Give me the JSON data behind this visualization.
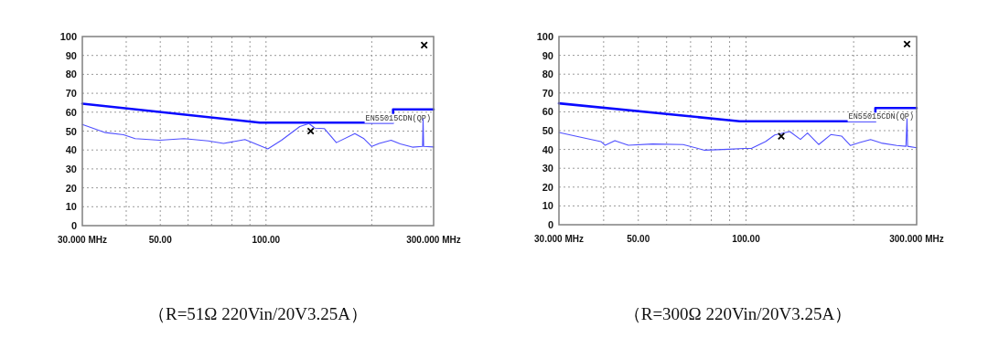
{
  "chart_data": [
    {
      "type": "line",
      "log": "x",
      "grid": true,
      "xlim": [
        30,
        300
      ],
      "ylim": [
        0,
        100
      ],
      "xticks": [
        {
          "value": 30,
          "label": "30.000 MHz"
        },
        {
          "value": 40,
          "label": null
        },
        {
          "value": 50,
          "label": "50.00"
        },
        {
          "value": 60,
          "label": null
        },
        {
          "value": 70,
          "label": null
        },
        {
          "value": 80,
          "label": null
        },
        {
          "value": 90,
          "label": null
        },
        {
          "value": 100,
          "label": "100.00"
        },
        {
          "value": 200,
          "label": null
        },
        {
          "value": 300,
          "label": "300.000 MHz"
        }
      ],
      "yticks": [
        0,
        10,
        20,
        30,
        40,
        50,
        60,
        70,
        80,
        90,
        100
      ],
      "series": [
        {
          "name": "EN55015CDN(QP)",
          "color": "#0a0aff",
          "x": [
            30,
            96,
            230,
            230,
            300
          ],
          "values": [
            64.5,
            54.5,
            54.5,
            61.5,
            61.5
          ]
        },
        {
          "color": "#4f4fff",
          "x": [
            30,
            32.1,
            34.9,
            39.3,
            42.4,
            49.8,
            58.4,
            68.5,
            75.7,
            87.1,
            101.2,
            110.7,
            124.8,
            132.5,
            137.8,
            146.7,
            158.6,
            179,
            190,
            200,
            210,
            227,
            241,
            261,
            279,
            280,
            281,
            300
          ],
          "values": [
            53.5,
            51.6,
            49.2,
            48.1,
            46.0,
            45.2,
            46.0,
            44.8,
            43.5,
            45.5,
            40.6,
            45.2,
            52.4,
            54.0,
            51.6,
            51.3,
            43.9,
            48.7,
            46.0,
            41.9,
            43.5,
            45.2,
            43.2,
            41.5,
            41.9,
            56.5,
            41.9,
            41.6
          ]
        },
        {
          "type": "scatter",
          "marker": "cross",
          "color": "#000000",
          "x": [
            134,
            282
          ],
          "values": [
            50,
            95.5
          ]
        }
      ],
      "annotations": [
        "（R=51Ω  220Vin/20V3.25A）"
      ]
    },
    {
      "type": "line",
      "log": "x",
      "grid": true,
      "xlim": [
        30,
        300
      ],
      "ylim": [
        0,
        100
      ],
      "xticks": [
        {
          "value": 30,
          "label": "30.000 MHz"
        },
        {
          "value": 40,
          "label": null
        },
        {
          "value": 50,
          "label": "50.00"
        },
        {
          "value": 60,
          "label": null
        },
        {
          "value": 70,
          "label": null
        },
        {
          "value": 80,
          "label": null
        },
        {
          "value": 90,
          "label": null
        },
        {
          "value": 100,
          "label": "100.00"
        },
        {
          "value": 200,
          "label": null
        },
        {
          "value": 300,
          "label": "300.000 MHz"
        }
      ],
      "yticks": [
        0,
        10,
        20,
        30,
        40,
        50,
        60,
        70,
        80,
        90,
        100
      ],
      "series": [
        {
          "name": "EN55015CDN(QP)",
          "color": "#0a0aff",
          "x": [
            30,
            96,
            230,
            230,
            300
          ],
          "values": [
            64.5,
            55,
            55,
            62,
            62
          ]
        },
        {
          "color": "#4f4fff",
          "x": [
            30,
            34.3,
            39.3,
            40.4,
            43,
            46.9,
            54.8,
            66.7,
            76.6,
            89.6,
            98.8,
            103.8,
            113.4,
            120.3,
            132.6,
            142,
            148.6,
            159.7,
            172.7,
            185,
            196,
            208,
            223,
            239,
            264,
            280,
            282,
            283,
            300
          ],
          "values": [
            49.0,
            46.6,
            44.2,
            42.2,
            44.7,
            42.2,
            42.9,
            42.6,
            39.6,
            40.1,
            40.5,
            40.6,
            44.2,
            47.7,
            49.5,
            45.3,
            48.7,
            42.6,
            47.9,
            47.1,
            42.1,
            43.7,
            45.3,
            43.4,
            42.1,
            41.7,
            56.3,
            41.7,
            40.9
          ]
        },
        {
          "type": "scatter",
          "marker": "cross",
          "color": "#000000",
          "x": [
            125.5,
            282
          ],
          "values": [
            47,
            96
          ]
        }
      ],
      "annotations": [
        "（R=300Ω  220Vin/20V3.25A）"
      ]
    }
  ]
}
